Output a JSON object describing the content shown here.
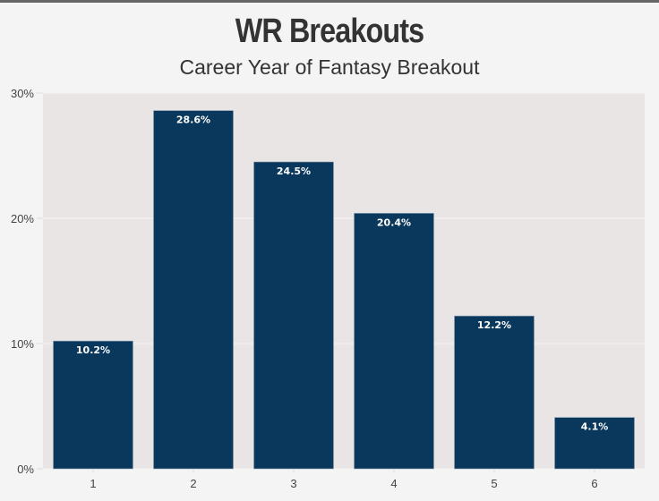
{
  "chart_data": {
    "type": "bar",
    "title": "WR Breakouts",
    "subtitle": "Career Year of Fantasy Breakout",
    "xlabel": "",
    "ylabel": "",
    "categories": [
      "1",
      "2",
      "3",
      "4",
      "5",
      "6"
    ],
    "values": [
      10.2,
      28.6,
      24.5,
      20.4,
      12.2,
      4.1
    ],
    "data_labels": [
      "10.2%",
      "28.6%",
      "24.5%",
      "20.4%",
      "12.2%",
      "4.1%"
    ],
    "ylim": [
      0,
      30
    ],
    "yticks": [
      0,
      10,
      20,
      30
    ],
    "ytick_labels": [
      "0%",
      "10%",
      "20%",
      "30%"
    ],
    "grid": true,
    "colors": {
      "bar": "#0a385c",
      "plot_bg": "#e9e5e4",
      "page_bg": "#f4f4f4"
    }
  }
}
